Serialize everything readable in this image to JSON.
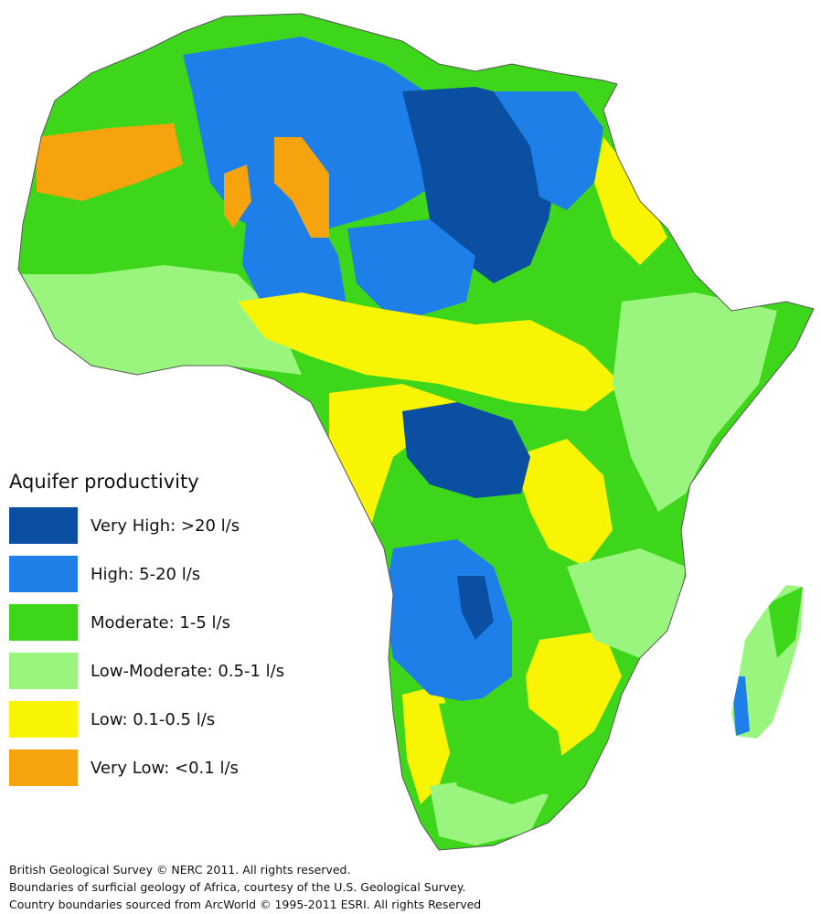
{
  "legend": {
    "title": "Aquifer productivity",
    "items": [
      {
        "label": "Very High: >20 l/s",
        "color": "#0b4fa2"
      },
      {
        "label": "High: 5-20 l/s",
        "color": "#1e7fe8"
      },
      {
        "label": "Moderate: 1-5 l/s",
        "color": "#3dd61b"
      },
      {
        "label": "Low-Moderate: 0.5-1 l/s",
        "color": "#9af57f"
      },
      {
        "label": "Low: 0.1-0.5 l/s",
        "color": "#f8f403"
      },
      {
        "label": "Very Low: <0.1 l/s",
        "color": "#f7a30d"
      }
    ]
  },
  "credits": [
    "British Geological Survey © NERC 2011.  All rights reserved.",
    "Boundaries of surficial geology of Africa, courtesy of the U.S. Geological Survey.",
    "Country boundaries sourced from ArcWorld © 1995-2011 ESRI.  All rights Reserved"
  ]
}
